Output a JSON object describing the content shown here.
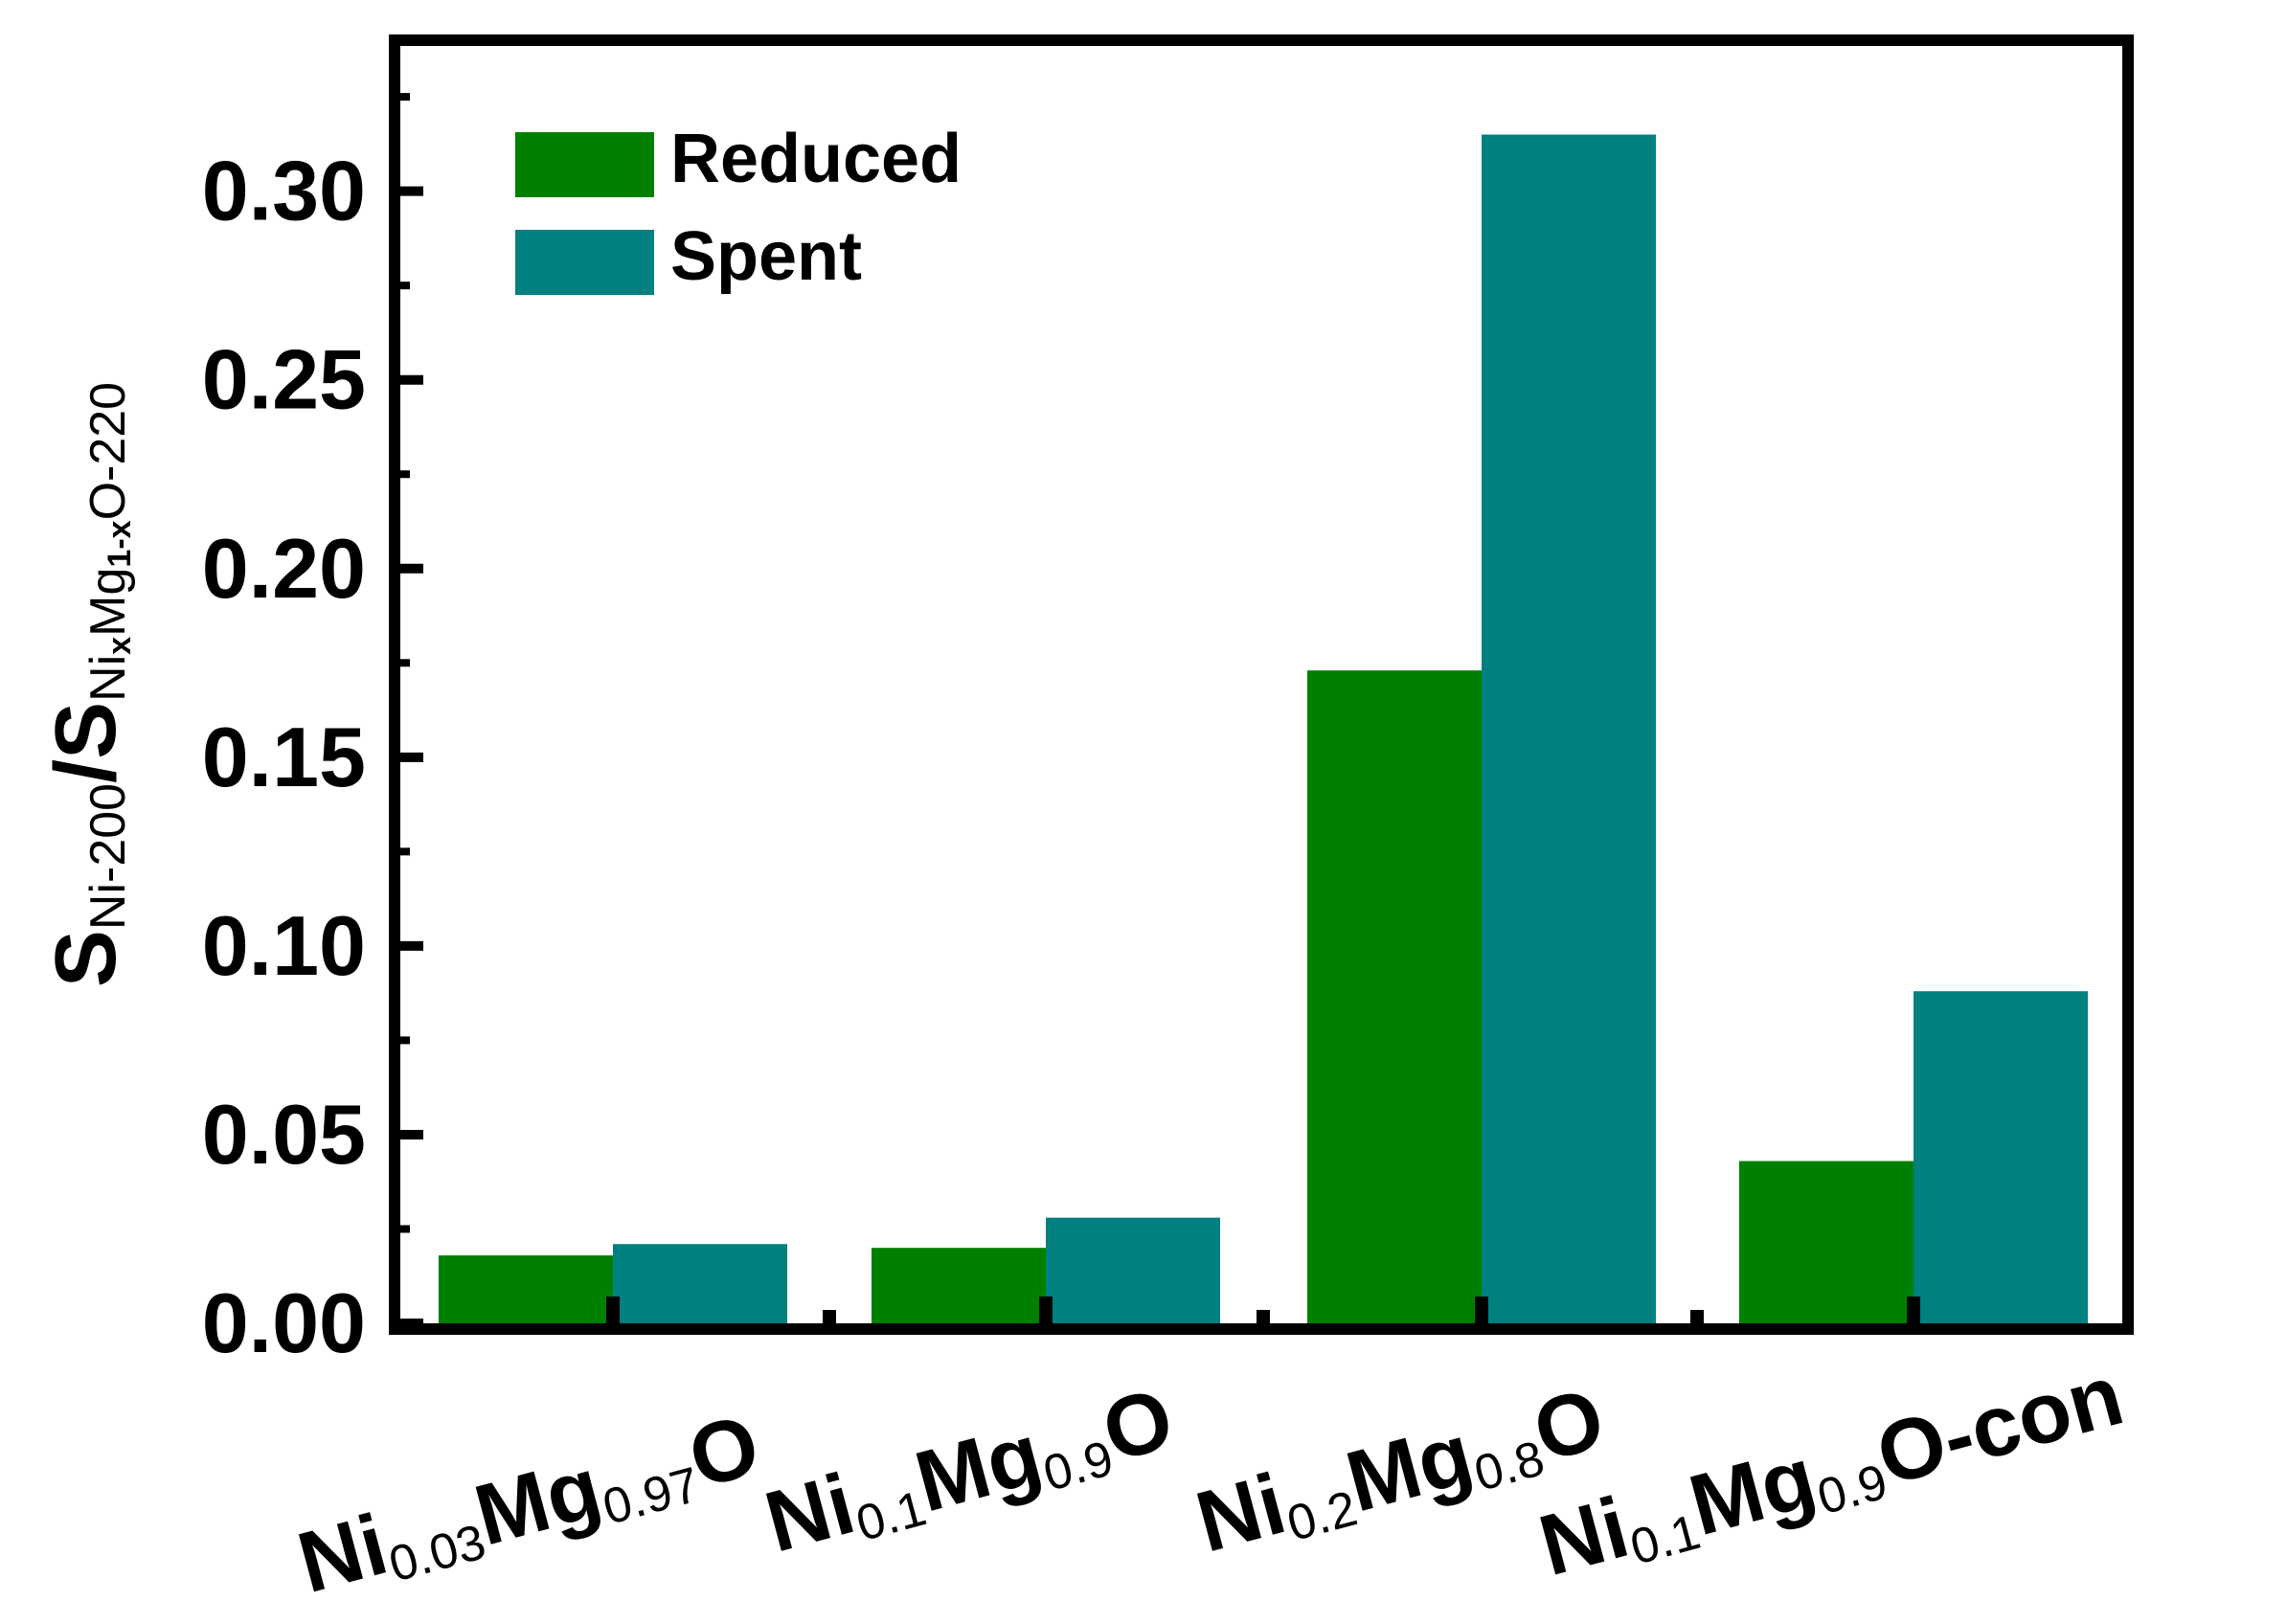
{
  "chart_data": {
    "type": "bar",
    "categories": [
      {
        "base": "Ni",
        "sub1": "0.03",
        "mid": "Mg",
        "sub2": "0.97",
        "end": "O"
      },
      {
        "base": "Ni",
        "sub1": "0.1",
        "mid": "Mg",
        "sub2": "0.9",
        "end": "O"
      },
      {
        "base": "Ni",
        "sub1": "0.2",
        "mid": "Mg",
        "sub2": "0.8",
        "end": "O"
      },
      {
        "base": "Ni",
        "sub1": "0.1",
        "mid": "Mg",
        "sub2": "0.9",
        "end": "O-con"
      }
    ],
    "series": [
      {
        "name": "Reduced",
        "color": "#008000",
        "values": [
          0.018,
          0.02,
          0.173,
          0.043
        ]
      },
      {
        "name": "Spent",
        "color": "#008080",
        "values": [
          0.021,
          0.028,
          0.315,
          0.088
        ]
      }
    ],
    "ylabel": {
      "s1": "S",
      "sub1": "Ni-200",
      "slash": "/",
      "s2": "S",
      "sub2a": "Ni",
      "sub2x": "x",
      "sub2b": "Mg",
      "sub2c": "1-x",
      "sub2d": "O-220"
    },
    "yticks": [
      "0.00",
      "0.05",
      "0.10",
      "0.15",
      "0.20",
      "0.25",
      "0.30"
    ],
    "ylim": [
      0,
      0.34
    ],
    "legend_position": "top-left"
  }
}
